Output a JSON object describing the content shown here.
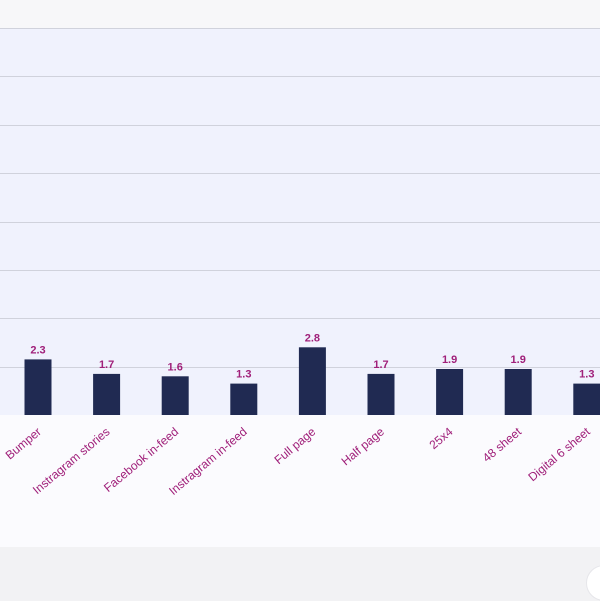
{
  "chart_data": {
    "type": "bar",
    "categories": [
      "Bumper",
      "Instragram stories",
      "Facebook in-feed",
      "Instragram in-feed",
      "Full page",
      "Half page",
      "25x4",
      "48 sheet",
      "Digital 6 sheet"
    ],
    "values": [
      2.3,
      1.7,
      1.6,
      1.3,
      2.8,
      1.7,
      1.9,
      1.9,
      1.3
    ],
    "title": "",
    "xlabel": "",
    "ylabel": "",
    "ylim": [
      0,
      16
    ],
    "grid": true,
    "colors": {
      "bar": "#202a52",
      "label": "#a0207a",
      "plot_background": "#f0f2fd",
      "grid": "#d0d2dc"
    }
  }
}
